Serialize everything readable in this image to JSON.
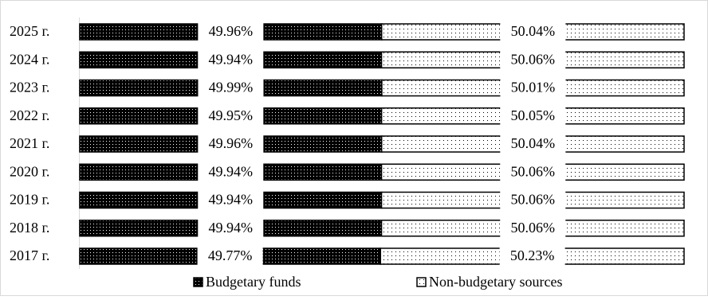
{
  "chart_data": {
    "type": "stacked-bar-horizontal",
    "categories": [
      "2025 г.",
      "2024 г.",
      "2023 г.",
      "2022 г.",
      "2021 г.",
      "2020 г.",
      "2019 г.",
      "2018 г.",
      "2017 г."
    ],
    "xlim": [
      0,
      100
    ],
    "legend": "bottom",
    "series": [
      {
        "name": "Budgetary funds",
        "color": "#000000",
        "values": [
          49.96,
          49.94,
          49.99,
          49.95,
          49.96,
          49.94,
          49.94,
          49.94,
          49.77
        ],
        "value_labels": [
          "49.96%",
          "49.94%",
          "49.99%",
          "49.95%",
          "49.96%",
          "49.94%",
          "49.94%",
          "49.94%",
          "49.77%"
        ]
      },
      {
        "name": "Non-budgetary sources",
        "color": "#ffffff",
        "values": [
          50.04,
          50.06,
          50.01,
          50.05,
          50.04,
          50.06,
          50.06,
          50.06,
          50.23
        ],
        "value_labels": [
          "50.04%",
          "50.06%",
          "50.01%",
          "50.05%",
          "50.04%",
          "50.06%",
          "50.06%",
          "50.06%",
          "50.23%"
        ]
      }
    ]
  }
}
